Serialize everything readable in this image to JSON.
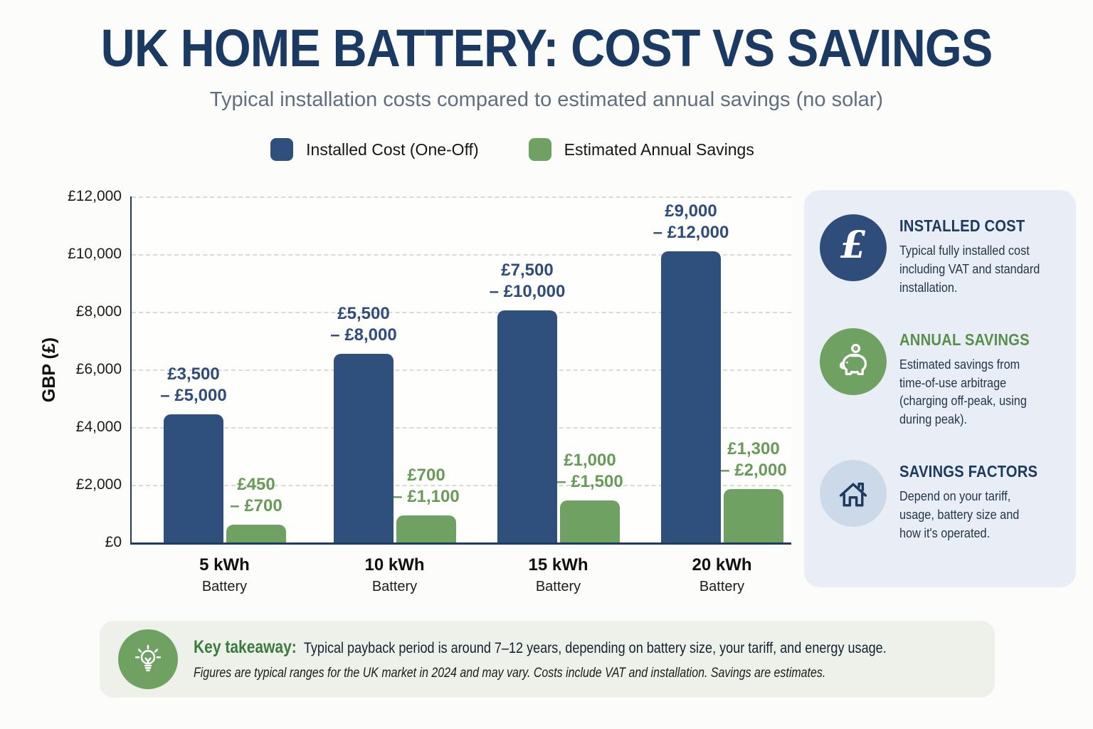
{
  "header": {
    "title": "UK HOME BATTERY: COST VS SAVINGS",
    "subtitle": "Typical installation costs compared to estimated annual savings (no solar)"
  },
  "palette": {
    "navy_bar": "#2f4f7d",
    "green_bar": "#6fa163",
    "navy_text": "#1d3b60",
    "green_text": "#679b57",
    "axis": "#203d5f",
    "sidebar_bg": "#e9eef6",
    "footer_bg": "#edf1e9",
    "page_bg": "#fcfcfb"
  },
  "chart_data": {
    "type": "bar",
    "title": "UK Home Battery: Cost vs Savings",
    "xlabel": "",
    "ylabel": "GBP (£)",
    "ylim": [
      0,
      12000
    ],
    "ytick_step": 2000,
    "ytick_labels": [
      "£12,000",
      "£10,000",
      "£8,000",
      "£6,000",
      "£4,000",
      "£2,000",
      "£0"
    ],
    "grid": "horizontal-dashed",
    "legend_position": "top",
    "categories": [
      "5 kWh Battery",
      "10 kWh Battery",
      "15 kWh Battery",
      "20 kWh Battery"
    ],
    "series": [
      {
        "name": "Installed Cost (One-Off)",
        "color": "#2f4f7d",
        "values": [
          4450,
          6550,
          8050,
          10100
        ],
        "range_labels": [
          "£3,500 – £5,000",
          "£5,500 – £8,000",
          "£7,500 – £10,000",
          "£9,000 – £12,000"
        ]
      },
      {
        "name": "Estimated Annual Savings",
        "color": "#6fa163",
        "values": [
          620,
          950,
          1450,
          1850
        ],
        "range_labels": [
          "£450 – £700",
          "£700 – £1,100",
          "£1,000 – £1,500",
          "£1,300 – £2,000"
        ]
      }
    ],
    "groups": [
      {
        "kwh": "5 kWh",
        "sub": "Battery",
        "cost_l1": "£3,500",
        "cost_l2": "– £5,000",
        "save_l1": "£450",
        "save_l2": "– £700"
      },
      {
        "kwh": "10 kWh",
        "sub": "Battery",
        "cost_l1": "£5,500",
        "cost_l2": "– £8,000",
        "save_l1": "£700",
        "save_l2": "– £1,100"
      },
      {
        "kwh": "15 kWh",
        "sub": "Battery",
        "cost_l1": "£7,500",
        "cost_l2": "– £10,000",
        "save_l1": "£1,000",
        "save_l2": "– £1,500"
      },
      {
        "kwh": "20 kWh",
        "sub": "Battery",
        "cost_l1": "£9,000",
        "cost_l2": "– £12,000",
        "save_l1": "£1,300",
        "save_l2": "– £2,000"
      }
    ]
  },
  "sidebar": {
    "cards": [
      {
        "icon": "pound-sign-icon",
        "icon_bg": "#2e4d7b",
        "heading": "INSTALLED COST",
        "body": "Typical fully installed cost including VAT and standard installation."
      },
      {
        "icon": "piggy-bank-icon",
        "icon_bg": "#6fa163",
        "heading": "ANNUAL SAVINGS",
        "body": "Estimated savings from time-of-use arbitrage (charging off-peak, using during peak)."
      },
      {
        "icon": "house-icon",
        "icon_bg": "#ccd9e9",
        "heading": "SAVINGS FACTORS",
        "body": "Depend on your tariff, usage, battery size and how it's operated."
      }
    ]
  },
  "footer": {
    "icon": "lightbulb-icon",
    "icon_bg": "#6fa163",
    "heading": "Key takeaway:",
    "text": "Typical payback period is around 7–12 years, depending on battery size, your tariff, and energy usage.",
    "note": "Figures are typical ranges for the UK market in 2024 and may vary. Costs include VAT and installation. Savings are estimates."
  }
}
